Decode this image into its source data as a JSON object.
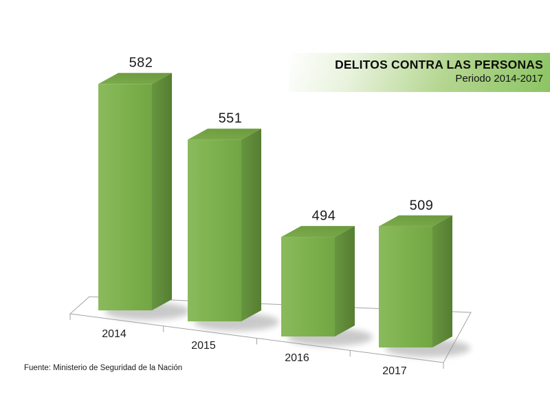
{
  "title_box": {
    "title": "DELITOS CONTRA LAS PERSONAS",
    "subtitle": "Periodo 2014-2017"
  },
  "source": "Fuente: Ministerio de Seguridad de la Nación",
  "chart_data": {
    "type": "bar",
    "style": "3d-column",
    "title": "DELITOS CONTRA LAS PERSONAS",
    "subtitle": "Periodo 2014-2017",
    "categories": [
      "2014",
      "2015",
      "2016",
      "2017"
    ],
    "values": [
      582,
      551,
      494,
      509
    ],
    "data_labels_shown": true,
    "value_axis_visible": false,
    "grid": false,
    "legend_position": "none",
    "colors": {
      "bar_front": "#7db04e",
      "bar_top": "#73a444",
      "bar_side": "#5e8c38",
      "floor_outline": "#a3a3a3",
      "label_text": "#1b1b1b",
      "title_band_green": "#8cc463"
    }
  }
}
